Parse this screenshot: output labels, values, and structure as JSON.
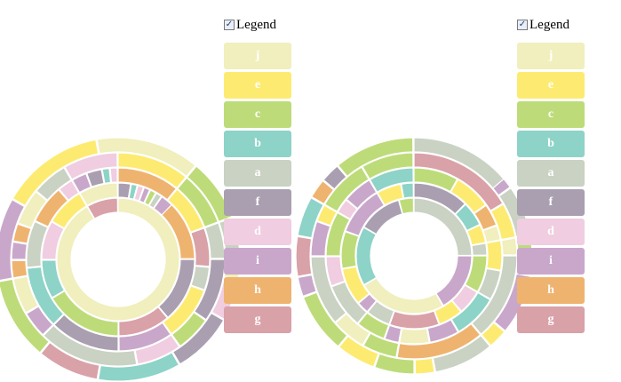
{
  "legend_title": "Legend",
  "legend_checked_symbol": "✓",
  "categories": [
    "j",
    "e",
    "c",
    "b",
    "a",
    "f",
    "d",
    "i",
    "h",
    "g"
  ],
  "colors": {
    "j": "#f0efbd",
    "e": "#fdeb71",
    "c": "#bddc79",
    "b": "#8dd3c7",
    "a": "#c9d2c3",
    "f": "#aa9fb1",
    "d": "#f0cde0",
    "i": "#c9a7cb",
    "h": "#efb370",
    "g": "#d9a1a8"
  },
  "chart_data": [
    {
      "type": "sunburst",
      "legend_checked": true,
      "rings": [
        [
          [
            "j",
            330
          ],
          [
            "g",
            30
          ]
        ],
        [
          [
            "e",
            30
          ],
          [
            "h",
            60
          ],
          [
            "f",
            50
          ],
          [
            "g",
            40
          ],
          [
            "c",
            60
          ],
          [
            "b",
            30
          ],
          [
            "d",
            30
          ],
          [
            "e",
            30
          ],
          [
            "j",
            30
          ],
          [
            "f",
            10
          ],
          [
            "b",
            5
          ],
          [
            "d",
            5
          ],
          [
            "i",
            5
          ],
          [
            "c",
            5
          ],
          [
            "a",
            5
          ],
          [
            "i",
            10
          ]
        ],
        [
          [
            "h",
            40
          ],
          [
            "e",
            30
          ],
          [
            "g",
            25
          ],
          [
            "a",
            15
          ],
          [
            "e",
            35
          ],
          [
            "i",
            35
          ],
          [
            "f",
            45
          ],
          [
            "b",
            40
          ],
          [
            "a",
            30
          ],
          [
            "h",
            25
          ],
          [
            "d",
            10
          ],
          [
            "i",
            10
          ],
          [
            "f",
            10
          ],
          [
            "b",
            5
          ],
          [
            "d",
            5
          ]
        ],
        [
          [
            "e",
            40
          ],
          [
            "c",
            30
          ],
          [
            "a",
            20
          ],
          [
            "f",
            35
          ],
          [
            "c",
            20
          ],
          [
            "d",
            25
          ],
          [
            "a",
            55
          ],
          [
            "i",
            15
          ],
          [
            "j",
            20
          ],
          [
            "h",
            10
          ],
          [
            "i",
            10
          ],
          [
            "h",
            10
          ],
          [
            "j",
            20
          ],
          [
            "a",
            20
          ],
          [
            "d",
            30
          ]
        ],
        [
          [
            "i",
            40
          ],
          [
            "c",
            30
          ],
          [
            "a",
            20
          ],
          [
            "j",
            10
          ],
          [
            "d",
            20
          ],
          [
            "f",
            30
          ],
          [
            "b",
            40
          ],
          [
            "g",
            30
          ],
          [
            "c",
            40
          ],
          [
            "i",
            40
          ],
          [
            "e",
            50
          ],
          [
            "j",
            50
          ]
        ]
      ]
    },
    {
      "type": "sunburst",
      "legend_checked": true,
      "rings": [
        [
          [
            "a",
            90
          ],
          [
            "i",
            60
          ],
          [
            "j",
            90
          ],
          [
            "b",
            60
          ],
          [
            "f",
            45
          ],
          [
            "c",
            15
          ]
        ],
        [
          [
            "f",
            45
          ],
          [
            "b",
            20
          ],
          [
            "e",
            15
          ],
          [
            "a",
            10
          ],
          [
            "c",
            30
          ],
          [
            "d",
            20
          ],
          [
            "e",
            20
          ],
          [
            "g",
            40
          ],
          [
            "a",
            20
          ],
          [
            "i",
            10
          ],
          [
            "e",
            30
          ],
          [
            "c",
            30
          ],
          [
            "i",
            40
          ],
          [
            "e",
            20
          ],
          [
            "b",
            10
          ]
        ],
        [
          [
            "c",
            30
          ],
          [
            "e",
            25
          ],
          [
            "h",
            15
          ],
          [
            "j",
            10
          ],
          [
            "e",
            20
          ],
          [
            "a",
            20
          ],
          [
            "b",
            30
          ],
          [
            "i",
            20
          ],
          [
            "j",
            20
          ],
          [
            "i",
            10
          ],
          [
            "c",
            20
          ],
          [
            "a",
            30
          ],
          [
            "d",
            20
          ],
          [
            "c",
            30
          ],
          [
            "d",
            10
          ],
          [
            "i",
            20
          ],
          [
            "b",
            30
          ]
        ],
        [
          [
            "g",
            60
          ],
          [
            "e",
            20
          ],
          [
            "j",
            10
          ],
          [
            "a",
            50
          ],
          [
            "h",
            50
          ],
          [
            "c",
            20
          ],
          [
            "j",
            20
          ],
          [
            "a",
            40
          ],
          [
            "i",
            20
          ],
          [
            "e",
            10
          ],
          [
            "c",
            30
          ],
          [
            "c",
            30
          ]
        ],
        [
          [
            "f",
            35
          ],
          [
            "c",
            10
          ],
          [
            "i",
            10
          ],
          [
            "a",
            25
          ],
          [
            "c",
            10
          ],
          [
            "e",
            10
          ],
          [
            "i",
            30
          ],
          [
            "e",
            10
          ],
          [
            "a",
            30
          ],
          [
            "e",
            10
          ],
          [
            "c",
            20
          ],
          [
            "e",
            20
          ],
          [
            "c",
            30
          ],
          [
            "i",
            10
          ],
          [
            "g",
            20
          ],
          [
            "b",
            20
          ],
          [
            "h",
            10
          ],
          [
            "f",
            10
          ],
          [
            "c",
            40
          ],
          [
            "a",
            50
          ]
        ]
      ]
    }
  ]
}
